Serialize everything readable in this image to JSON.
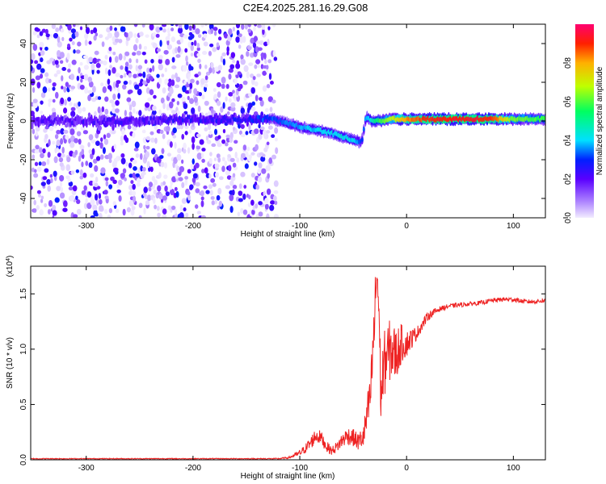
{
  "title": "C2E4.2025.281.16.29.G08",
  "colors": {
    "trace": "#ee2222",
    "frame": "#000000",
    "background": "#ffffff"
  },
  "chart_data": [
    {
      "type": "heatmap",
      "name": "spectrogram",
      "xlabel": "Height of straight line (km)",
      "ylabel": "Frequency (Hz)",
      "xlim": [
        -352,
        130
      ],
      "ylim": [
        -50,
        50
      ],
      "xticks": [
        -300,
        -200,
        -100,
        0,
        100
      ],
      "yticks": [
        -40,
        -20,
        0,
        20,
        40
      ],
      "noise_region_x": [
        -352,
        -122
      ],
      "noise_amplitude_range": [
        0.0,
        0.3
      ],
      "signal_track": {
        "x": [
          -352,
          -300,
          -250,
          -200,
          -150,
          -125,
          -100,
          -80,
          -60,
          -50,
          -42,
          -38,
          -32,
          -25,
          -15,
          0,
          20,
          50,
          80,
          100,
          130
        ],
        "frequency": [
          0,
          0,
          0,
          1,
          1,
          1,
          -3,
          -5,
          -8,
          -10,
          -11,
          2,
          0,
          0,
          1,
          1,
          1,
          1,
          1,
          1,
          1
        ],
        "amplitude": [
          0.15,
          0.15,
          0.16,
          0.18,
          0.2,
          0.3,
          0.35,
          0.38,
          0.4,
          0.38,
          0.3,
          0.35,
          0.45,
          0.55,
          0.65,
          0.8,
          0.88,
          0.9,
          0.88,
          0.6,
          0.55
        ]
      },
      "colorbar": {
        "label": "Normalized spectral amplitude",
        "range": [
          0,
          1
        ],
        "ticks": [
          "0.0",
          "0.2",
          "0.4",
          "0.6",
          "0.8"
        ],
        "tick_values": [
          0,
          0.2,
          0.4,
          0.6,
          0.8
        ]
      }
    },
    {
      "type": "line",
      "name": "snr",
      "xlabel": "Height of straight line (km)",
      "ylabel": "SNR (10 * v/v)",
      "scale_label_base": "(x10",
      "scale_label_exp": "4",
      "scale_label_close": ")",
      "xlim": [
        -352,
        130
      ],
      "ylim": [
        0,
        1.75
      ],
      "xticks": [
        -300,
        -200,
        -100,
        0,
        100
      ],
      "yticks": [
        0.0,
        0.5,
        1.0,
        1.5
      ],
      "ytick_labels": [
        "0.0",
        "0.5",
        "1.0",
        "1.5"
      ],
      "series": [
        {
          "name": "SNR",
          "x": [
            -352,
            -300,
            -250,
            -200,
            -150,
            -120,
            -110,
            -100,
            -95,
            -90,
            -85,
            -80,
            -75,
            -70,
            -65,
            -60,
            -55,
            -50,
            -45,
            -40,
            -37,
            -34,
            -32,
            -30,
            -28,
            -26,
            -24,
            -22,
            -20,
            -15,
            -10,
            -5,
            0,
            10,
            20,
            30,
            40,
            50,
            60,
            70,
            80,
            90,
            100,
            110,
            120,
            130
          ],
          "y": [
            0.01,
            0.01,
            0.01,
            0.01,
            0.01,
            0.01,
            0.02,
            0.06,
            0.1,
            0.15,
            0.22,
            0.2,
            0.12,
            0.08,
            0.12,
            0.18,
            0.22,
            0.2,
            0.16,
            0.22,
            0.4,
            0.55,
            0.9,
            1.25,
            1.7,
            1.4,
            0.55,
            0.8,
            0.9,
            1.0,
            0.95,
            1.05,
            1.05,
            1.15,
            1.3,
            1.36,
            1.39,
            1.4,
            1.41,
            1.42,
            1.44,
            1.45,
            1.45,
            1.43,
            1.43,
            1.44
          ],
          "noise": [
            0.004,
            0.004,
            0.004,
            0.004,
            0.004,
            0.005,
            0.01,
            0.03,
            0.04,
            0.06,
            0.07,
            0.06,
            0.05,
            0.04,
            0.05,
            0.07,
            0.08,
            0.08,
            0.08,
            0.12,
            0.18,
            0.2,
            0.25,
            0.3,
            0.22,
            0.3,
            0.25,
            0.3,
            0.3,
            0.28,
            0.25,
            0.18,
            0.12,
            0.06,
            0.04,
            0.025,
            0.02,
            0.02,
            0.02,
            0.02,
            0.02,
            0.02,
            0.02,
            0.02,
            0.02,
            0.02
          ]
        }
      ]
    }
  ]
}
